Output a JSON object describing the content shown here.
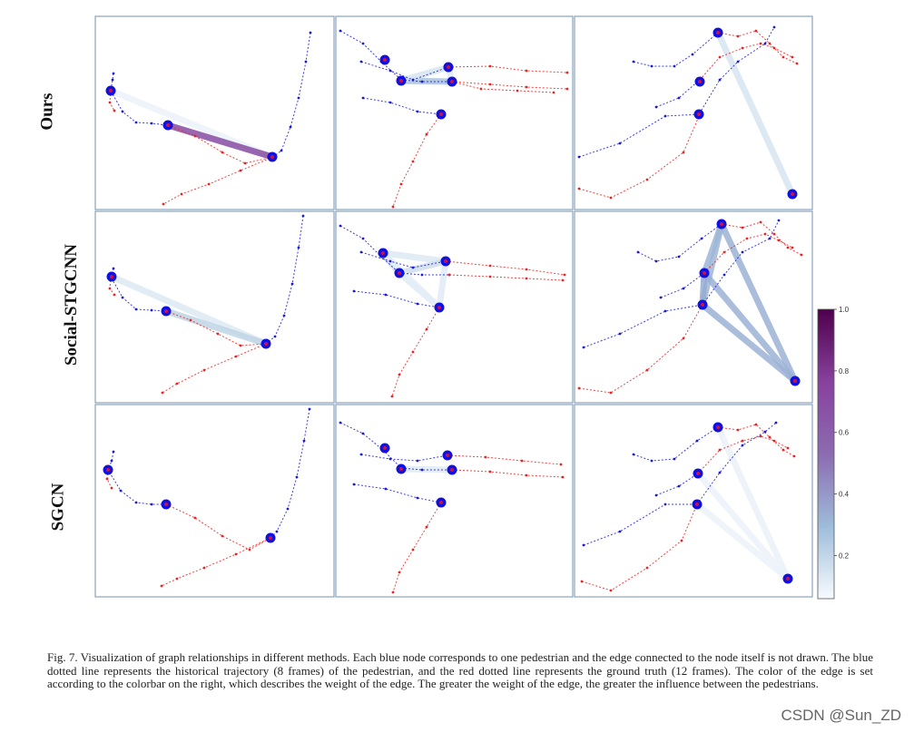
{
  "row_labels": [
    "Ours",
    "Social-STGCNN",
    "SGCN"
  ],
  "colorbar": {
    "ticks": [
      "1.0",
      "0.8",
      "0.6",
      "0.4",
      "0.2"
    ],
    "tick_values": [
      1.0,
      0.8,
      0.6,
      0.4,
      0.2
    ],
    "colors": [
      "#f7fbff",
      "#9ebcda",
      "#8c6bb1",
      "#88419d",
      "#4d004b"
    ]
  },
  "style": {
    "history_color": "#1a1adc",
    "truth_color": "#ee2222",
    "node_color": "#1010e0",
    "node_center_color": "#cc1144",
    "panel_border": "#8aa3bd"
  },
  "caption": "Fig. 7.  Visualization of graph relationships in different methods. Each blue node corresponds to one pedestrian and the edge connected to the node itself is not drawn. The blue dotted line represents the historical trajectory (8 frames) of the pedestrian, and the red dotted line represents the ground truth (12 frames). The color of the edge is set according to the colorbar on the right, which describes the weight of the edge. The greater the weight of the edge, the greater the influence between the pedestrians.",
  "watermark": "CSDN @Sun_ZD"
}
